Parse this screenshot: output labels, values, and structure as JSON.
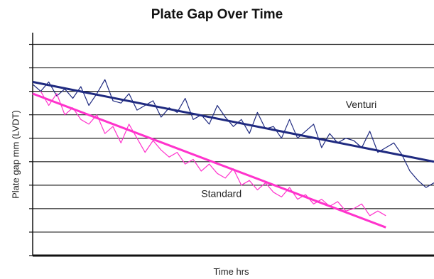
{
  "chart_data": {
    "type": "line",
    "title": "Plate Gap Over Time",
    "xlabel": "Time hrs",
    "ylabel": "Plate gap mm (LVDT)",
    "grid": true,
    "x_tick_labels": false,
    "y_tick_labels": false,
    "xlim": [
      0,
      100
    ],
    "ylim": [
      0,
      9.5
    ],
    "series": [
      {
        "name": "Venturi",
        "color": "#1f2a80",
        "x": [
          0,
          2,
          4,
          6,
          8,
          10,
          12,
          14,
          16,
          18,
          20,
          22,
          24,
          26,
          28,
          30,
          32,
          34,
          36,
          38,
          40,
          42,
          44,
          46,
          48,
          50,
          52,
          54,
          56,
          58,
          60,
          62,
          64,
          66,
          68,
          70,
          72,
          74,
          76,
          78,
          80,
          82,
          84,
          86,
          88,
          90,
          92,
          94,
          96,
          98,
          100
        ],
        "y": [
          7.3,
          7.0,
          7.4,
          6.8,
          7.1,
          6.7,
          7.2,
          6.4,
          6.9,
          7.5,
          6.6,
          6.5,
          6.9,
          6.2,
          6.4,
          6.6,
          5.9,
          6.3,
          6.1,
          6.7,
          5.8,
          6.0,
          5.6,
          6.4,
          5.9,
          5.5,
          5.8,
          5.2,
          6.1,
          5.4,
          5.5,
          5.0,
          5.8,
          5.0,
          5.3,
          5.6,
          4.6,
          5.2,
          4.8,
          5.0,
          4.9,
          4.6,
          5.3,
          4.4,
          4.6,
          4.8,
          4.3,
          3.6,
          3.2,
          2.9,
          3.1
        ]
      },
      {
        "name": "Venturi trend",
        "color": "#1f2a80",
        "x": [
          0,
          100
        ],
        "y": [
          7.4,
          4.0
        ]
      },
      {
        "name": "Standard",
        "color": "#ff33cc",
        "x": [
          2,
          4,
          6,
          8,
          10,
          12,
          14,
          16,
          18,
          20,
          22,
          24,
          26,
          28,
          30,
          32,
          34,
          36,
          38,
          40,
          42,
          44,
          46,
          48,
          50,
          52,
          54,
          56,
          58,
          60,
          62,
          64,
          66,
          68,
          70,
          72,
          74,
          76,
          78,
          80,
          82,
          84,
          86,
          88
        ],
        "y": [
          7.0,
          6.4,
          6.9,
          6.0,
          6.3,
          5.8,
          5.6,
          6.0,
          5.2,
          5.5,
          4.8,
          5.6,
          5.0,
          4.4,
          4.9,
          4.5,
          4.2,
          4.4,
          3.9,
          4.1,
          3.6,
          3.9,
          3.5,
          3.3,
          3.7,
          3.0,
          3.2,
          2.8,
          3.1,
          2.7,
          2.5,
          2.9,
          2.4,
          2.6,
          2.2,
          2.4,
          2.1,
          2.3,
          1.9,
          2.0,
          2.2,
          1.7,
          1.9,
          1.7
        ]
      },
      {
        "name": "Standard trend",
        "color": "#ff33cc",
        "x": [
          0,
          88
        ],
        "y": [
          6.9,
          1.2
        ]
      }
    ],
    "annotations": [
      {
        "text": "Venturi",
        "x": 78,
        "y": 6.3
      },
      {
        "text": "Standard",
        "x": 42,
        "y": 2.5
      }
    ]
  }
}
